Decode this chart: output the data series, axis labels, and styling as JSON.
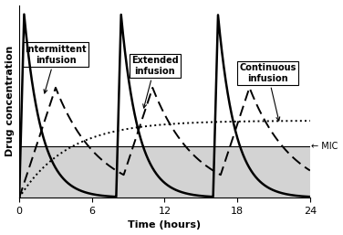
{
  "title": "",
  "xlabel": "Time (hours)",
  "ylabel": "Drug concentration",
  "xlim": [
    0,
    24
  ],
  "ylim": [
    0,
    1.05
  ],
  "mic_level": 0.28,
  "mic_label": "← MIC",
  "continuous_target": 0.42,
  "background_color": "#ffffff",
  "shading_color": "#d3d3d3",
  "intermittent_label": "Intermittent\ninfusion",
  "extended_label": "Extended\ninfusion",
  "continuous_label": "Continuous\ninfusion",
  "dose_times": [
    0,
    8,
    16
  ],
  "tick_hours": [
    0,
    6,
    12,
    18,
    24
  ],
  "int_peak": 1.0,
  "int_rise_time": 0.4,
  "int_decay_k": 0.7,
  "ext_peak": 0.6,
  "ext_rise_time": 3.0,
  "ext_decay_k": 0.28,
  "cont_max": 0.42,
  "cont_rise_k": 0.25
}
